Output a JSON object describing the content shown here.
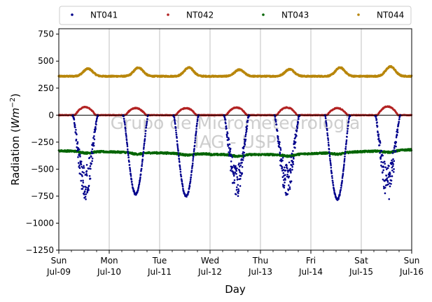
{
  "chart_data": {
    "type": "scatter",
    "xlabel": "Day",
    "ylabel": "Radiation (Wm⁻²)",
    "ylabel_main": "Radiation (",
    "ylabel_unit": "Wm",
    "ylabel_exp": "−2",
    "ylabel_close": ")",
    "ylim": [
      -1250,
      800
    ],
    "yticks": [
      -1250,
      -1000,
      -750,
      -500,
      -250,
      0,
      250,
      500,
      750
    ],
    "ytick_labels": [
      "−1250",
      "−1000",
      "−750",
      "−500",
      "−250",
      "0",
      "250",
      "500",
      "750"
    ],
    "xlim": [
      "2017-07-09",
      "2017-07-16"
    ],
    "xticks": [
      {
        "day": "Sun",
        "date": "Jul-09"
      },
      {
        "day": "Mon",
        "date": "Jul-10"
      },
      {
        "day": "Tue",
        "date": "Jul-11"
      },
      {
        "day": "Wed",
        "date": "Jul-12"
      },
      {
        "day": "Thu",
        "date": "Jul-13"
      },
      {
        "day": "Fri",
        "date": "Jul-14"
      },
      {
        "day": "Sat",
        "date": "Jul-15"
      },
      {
        "day": "Sun",
        "date": "Jul-16"
      }
    ],
    "grid": "vertical",
    "zero_line": true,
    "legend_position": "top",
    "watermark": [
      "Grupo de Micrometeorologia",
      "IAG - USP"
    ],
    "series": [
      {
        "name": "NT041",
        "color": "#00008b",
        "daily_min": [
          -790,
          -730,
          -750,
          -780,
          -770,
          -780,
          -790
        ]
      },
      {
        "name": "NT042",
        "color": "#b22222",
        "baseline": 0,
        "daily_max": [
          75,
          65,
          65,
          70,
          70,
          65,
          80
        ]
      },
      {
        "name": "NT043",
        "color": "#006400",
        "night_level": -330,
        "day_level": -350,
        "late_level": -320
      },
      {
        "name": "NT044",
        "color": "#b8860b",
        "night_level": 360,
        "daily_max": [
          430,
          440,
          440,
          420,
          425,
          440,
          450
        ]
      }
    ]
  }
}
